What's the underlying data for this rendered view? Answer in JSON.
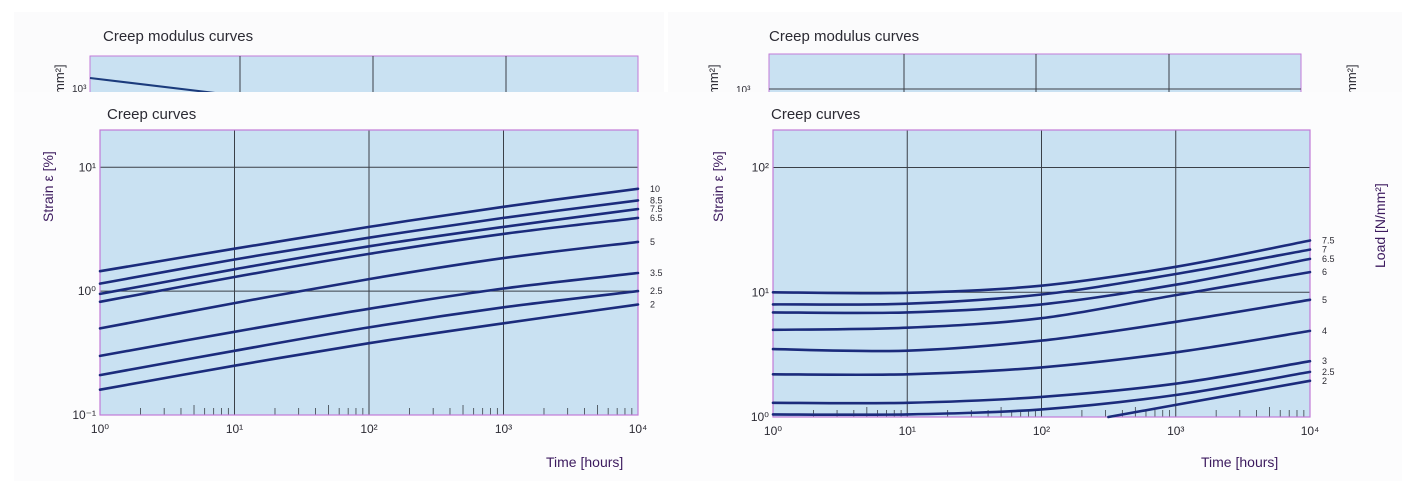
{
  "colors": {
    "plot_bg": "#c9e1f2",
    "grid": "#3a4048",
    "frame": "#c27ad8",
    "curve": "#1b2b7c",
    "axis_title": "#3c1a5e"
  },
  "modulus_panels": [
    {
      "title": "Creep modulus curves",
      "ylabel_fragment": "mm²]",
      "ytick": "10³"
    },
    {
      "title": "Creep modulus curves",
      "ylabel_fragment": "mm²]",
      "ytick": "10³",
      "right_fragment": "mm²]"
    }
  ],
  "chart_data": [
    {
      "type": "line",
      "title": "Creep curves",
      "xlabel": "Time [hours]",
      "ylabel": "Strain ε [%]",
      "xscale": "log",
      "yscale": "log",
      "xlim": [
        1,
        10000
      ],
      "ylim": [
        0.1,
        20
      ],
      "x_ticks": [
        "10⁰",
        "10¹",
        "10²",
        "10³",
        "10⁴"
      ],
      "y_ticks": [
        "10⁻¹",
        "10⁰",
        "10¹"
      ],
      "x": [
        1,
        10,
        100,
        1000,
        10000
      ],
      "series": [
        {
          "name": "10",
          "values": [
            1.45,
            2.2,
            3.3,
            4.8,
            6.7
          ]
        },
        {
          "name": "8.5",
          "values": [
            1.15,
            1.8,
            2.7,
            3.9,
            5.4
          ]
        },
        {
          "name": "7.5",
          "values": [
            0.95,
            1.5,
            2.3,
            3.3,
            4.6
          ]
        },
        {
          "name": "6.5",
          "values": [
            0.82,
            1.3,
            2.0,
            2.9,
            3.9
          ]
        },
        {
          "name": "5",
          "values": [
            0.5,
            0.8,
            1.25,
            1.85,
            2.5
          ]
        },
        {
          "name": "3.5",
          "values": [
            0.3,
            0.47,
            0.72,
            1.05,
            1.4
          ]
        },
        {
          "name": "2.5",
          "values": [
            0.21,
            0.33,
            0.51,
            0.74,
            1.0
          ]
        },
        {
          "name": "2",
          "values": [
            0.16,
            0.25,
            0.38,
            0.55,
            0.78
          ]
        }
      ]
    },
    {
      "type": "line",
      "title": "Creep curves",
      "xlabel": "Time [hours]",
      "ylabel": "Strain ε [%]",
      "y2label": "Load [N/mm²]",
      "xscale": "log",
      "yscale": "log",
      "xlim": [
        1,
        10000
      ],
      "ylim": [
        1,
        200
      ],
      "x_ticks": [
        "10⁰",
        "10¹",
        "10²",
        "10³",
        "10⁴"
      ],
      "y_ticks": [
        "10⁰",
        "10¹",
        "10²"
      ],
      "x": [
        1,
        10,
        100,
        1000,
        10000
      ],
      "series": [
        {
          "name": "7.5",
          "values": [
            10,
            9.9,
            11.3,
            16,
            26
          ]
        },
        {
          "name": "7",
          "values": [
            8.0,
            8.1,
            9.6,
            14,
            22
          ]
        },
        {
          "name": "6.5",
          "values": [
            6.9,
            6.9,
            8.0,
            11.5,
            18.5
          ]
        },
        {
          "name": "6",
          "values": [
            5.0,
            5.2,
            6.2,
            9.5,
            14.5
          ]
        },
        {
          "name": "5",
          "values": [
            3.5,
            3.4,
            4.1,
            5.8,
            8.7
          ]
        },
        {
          "name": "4",
          "values": [
            2.2,
            2.2,
            2.5,
            3.3,
            4.9
          ]
        },
        {
          "name": "3",
          "values": [
            1.3,
            1.3,
            1.45,
            1.85,
            2.8
          ]
        },
        {
          "name": "2.5",
          "values": [
            1.05,
            1.05,
            1.15,
            1.5,
            2.3
          ]
        },
        {
          "name": "2",
          "values": [
            null,
            null,
            null,
            1.25,
            1.95
          ]
        }
      ]
    }
  ]
}
